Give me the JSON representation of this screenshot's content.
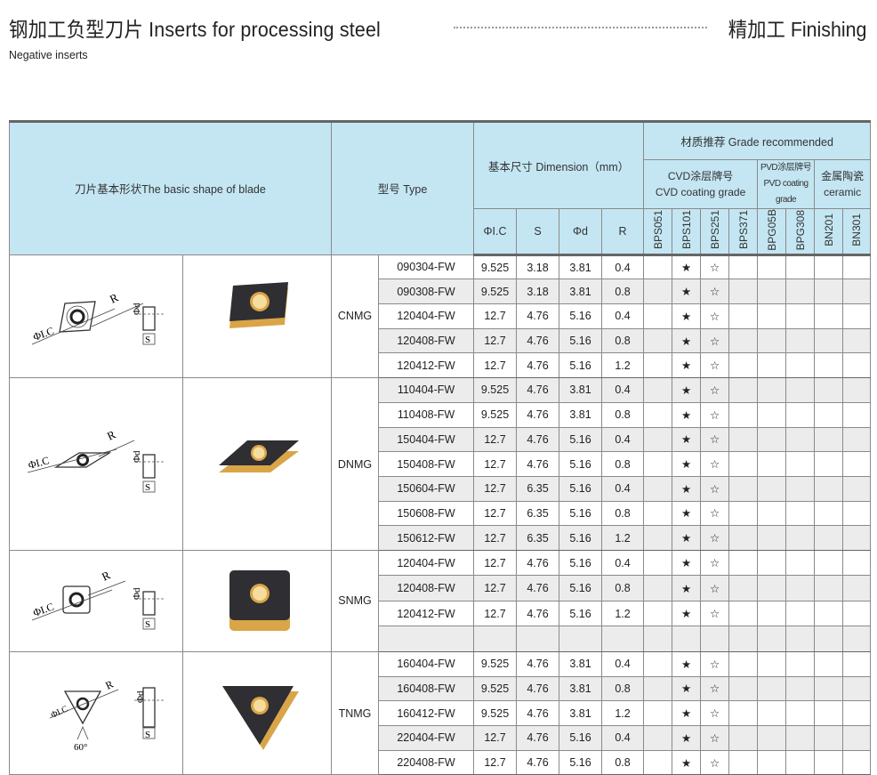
{
  "header": {
    "title": "钢加工负型刀片 Inserts for processing steel",
    "title_right": "精加工 Finishing",
    "subtitle": "Negative inserts"
  },
  "table": {
    "col_shape": "刀片基本形状The basic shape of blade",
    "col_type": "型号 Type",
    "col_dimension": "基本尺寸 Dimension（mm）",
    "col_grade": "材质推荐 Grade recommended",
    "grade_groups": [
      {
        "line1": "CVD涂层牌号",
        "line2": "CVD coating grade"
      },
      {
        "line1": "PVD涂层牌号",
        "line2": "PVD coating grade"
      },
      {
        "line1": "金属陶瓷",
        "line2": "ceramic"
      }
    ],
    "dim_labels": [
      "ΦI.C",
      "S",
      "Φd",
      "R"
    ],
    "grades": [
      "BPS051",
      "BPS101",
      "BPS251",
      "BPS371",
      "BPG05B",
      "BPG308",
      "BN201",
      "BN301"
    ],
    "symbols": {
      "recommended": "★",
      "optional": "☆"
    },
    "colors": {
      "header_bg": "#c4e6f3",
      "alt_row": "#ececec",
      "insert_dark": "#2e2e33",
      "insert_gold": "#d9a548"
    },
    "groups": [
      {
        "model": "CNMG",
        "shape": "rhombus-80",
        "rows": [
          {
            "type": "090304-FW",
            "ic": "9.525",
            "s": "3.18",
            "d": "3.81",
            "r": "0.4",
            "grades": [
              "",
              "★",
              "☆",
              "",
              "",
              "",
              "",
              ""
            ]
          },
          {
            "type": "090308-FW",
            "ic": "9.525",
            "s": "3.18",
            "d": "3.81",
            "r": "0.8",
            "grades": [
              "",
              "★",
              "☆",
              "",
              "",
              "",
              "",
              ""
            ]
          },
          {
            "type": "120404-FW",
            "ic": "12.7",
            "s": "4.76",
            "d": "5.16",
            "r": "0.4",
            "grades": [
              "",
              "★",
              "☆",
              "",
              "",
              "",
              "",
              ""
            ]
          },
          {
            "type": "120408-FW",
            "ic": "12.7",
            "s": "4.76",
            "d": "5.16",
            "r": "0.8",
            "grades": [
              "",
              "★",
              "☆",
              "",
              "",
              "",
              "",
              ""
            ]
          },
          {
            "type": "120412-FW",
            "ic": "12.7",
            "s": "4.76",
            "d": "5.16",
            "r": "1.2",
            "grades": [
              "",
              "★",
              "☆",
              "",
              "",
              "",
              "",
              ""
            ]
          }
        ]
      },
      {
        "model": "DNMG",
        "shape": "rhombus-55",
        "rows": [
          {
            "type": "110404-FW",
            "ic": "9.525",
            "s": "4.76",
            "d": "3.81",
            "r": "0.4",
            "grades": [
              "",
              "★",
              "☆",
              "",
              "",
              "",
              "",
              ""
            ]
          },
          {
            "type": "110408-FW",
            "ic": "9.525",
            "s": "4.76",
            "d": "3.81",
            "r": "0.8",
            "grades": [
              "",
              "★",
              "☆",
              "",
              "",
              "",
              "",
              ""
            ]
          },
          {
            "type": "150404-FW",
            "ic": "12.7",
            "s": "4.76",
            "d": "5.16",
            "r": "0.4",
            "grades": [
              "",
              "★",
              "☆",
              "",
              "",
              "",
              "",
              ""
            ]
          },
          {
            "type": "150408-FW",
            "ic": "12.7",
            "s": "4.76",
            "d": "5.16",
            "r": "0.8",
            "grades": [
              "",
              "★",
              "☆",
              "",
              "",
              "",
              "",
              ""
            ]
          },
          {
            "type": "150604-FW",
            "ic": "12.7",
            "s": "6.35",
            "d": "5.16",
            "r": "0.4",
            "grades": [
              "",
              "★",
              "☆",
              "",
              "",
              "",
              "",
              ""
            ]
          },
          {
            "type": "150608-FW",
            "ic": "12.7",
            "s": "6.35",
            "d": "5.16",
            "r": "0.8",
            "grades": [
              "",
              "★",
              "☆",
              "",
              "",
              "",
              "",
              ""
            ]
          },
          {
            "type": "150612-FW",
            "ic": "12.7",
            "s": "6.35",
            "d": "5.16",
            "r": "1.2",
            "grades": [
              "",
              "★",
              "☆",
              "",
              "",
              "",
              "",
              ""
            ]
          }
        ]
      },
      {
        "model": "SNMG",
        "shape": "square",
        "rows": [
          {
            "type": "120404-FW",
            "ic": "12.7",
            "s": "4.76",
            "d": "5.16",
            "r": "0.4",
            "grades": [
              "",
              "★",
              "☆",
              "",
              "",
              "",
              "",
              ""
            ]
          },
          {
            "type": "120408-FW",
            "ic": "12.7",
            "s": "4.76",
            "d": "5.16",
            "r": "0.8",
            "grades": [
              "",
              "★",
              "☆",
              "",
              "",
              "",
              "",
              ""
            ]
          },
          {
            "type": "120412-FW",
            "ic": "12.7",
            "s": "4.76",
            "d": "5.16",
            "r": "1.2",
            "grades": [
              "",
              "★",
              "☆",
              "",
              "",
              "",
              "",
              ""
            ]
          },
          {
            "type": "",
            "ic": "",
            "s": "",
            "d": "",
            "r": "",
            "grades": [
              "",
              "",
              "",
              "",
              "",
              "",
              "",
              ""
            ]
          }
        ]
      },
      {
        "model": "TNMG",
        "shape": "triangle",
        "angle_label": "60°",
        "rows": [
          {
            "type": "160404-FW",
            "ic": "9.525",
            "s": "4.76",
            "d": "3.81",
            "r": "0.4",
            "grades": [
              "",
              "★",
              "☆",
              "",
              "",
              "",
              "",
              ""
            ]
          },
          {
            "type": "160408-FW",
            "ic": "9.525",
            "s": "4.76",
            "d": "3.81",
            "r": "0.8",
            "grades": [
              "",
              "★",
              "☆",
              "",
              "",
              "",
              "",
              ""
            ]
          },
          {
            "type": "160412-FW",
            "ic": "9.525",
            "s": "4.76",
            "d": "3.81",
            "r": "1.2",
            "grades": [
              "",
              "★",
              "☆",
              "",
              "",
              "",
              "",
              ""
            ]
          },
          {
            "type": "220404-FW",
            "ic": "12.7",
            "s": "4.76",
            "d": "5.16",
            "r": "0.4",
            "grades": [
              "",
              "★",
              "☆",
              "",
              "",
              "",
              "",
              ""
            ]
          },
          {
            "type": "220408-FW",
            "ic": "12.7",
            "s": "4.76",
            "d": "5.16",
            "r": "0.8",
            "grades": [
              "",
              "★",
              "☆",
              "",
              "",
              "",
              "",
              ""
            ]
          }
        ]
      }
    ]
  }
}
